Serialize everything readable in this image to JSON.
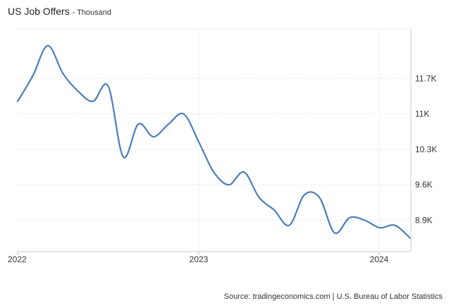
{
  "chart_data": {
    "type": "line",
    "title": "US Job Offers",
    "subtitle": "- Thousand",
    "xlabel": "",
    "ylabel": "",
    "x_tick_labels": [
      "2022",
      "2023",
      "2024"
    ],
    "y_tick_labels": [
      "8.9K",
      "9.6K",
      "10.3K",
      "11K",
      "11.7K"
    ],
    "y_ticks": [
      8900,
      9600,
      10300,
      11000,
      11700
    ],
    "ylim": [
      8280,
      12680
    ],
    "x_range": [
      "2022-01",
      "2024-03"
    ],
    "y_axis_position": "right",
    "grid": true,
    "line_color": "#4a7ebb",
    "series": [
      {
        "x": [
          "2022-01",
          "2022-02",
          "2022-03",
          "2022-04",
          "2022-05",
          "2022-06",
          "2022-07",
          "2022-08",
          "2022-09",
          "2022-10",
          "2022-11",
          "2022-12",
          "2023-01",
          "2023-02",
          "2023-03",
          "2023-04",
          "2023-05",
          "2023-06",
          "2023-07",
          "2023-08",
          "2023-09",
          "2023-10",
          "2023-11",
          "2023-12",
          "2024-01",
          "2024-02",
          "2024-03"
        ],
        "values": [
          11250,
          11750,
          12350,
          11800,
          11450,
          11250,
          11550,
          10150,
          10800,
          10550,
          10800,
          11000,
          10450,
          9850,
          9600,
          9850,
          9350,
          9100,
          8800,
          9400,
          9350,
          8650,
          8950,
          8900,
          8750,
          8800,
          8550
        ]
      }
    ]
  },
  "source": "Source: tradingeconomics.com | U.S. Bureau of Labor Statistics"
}
